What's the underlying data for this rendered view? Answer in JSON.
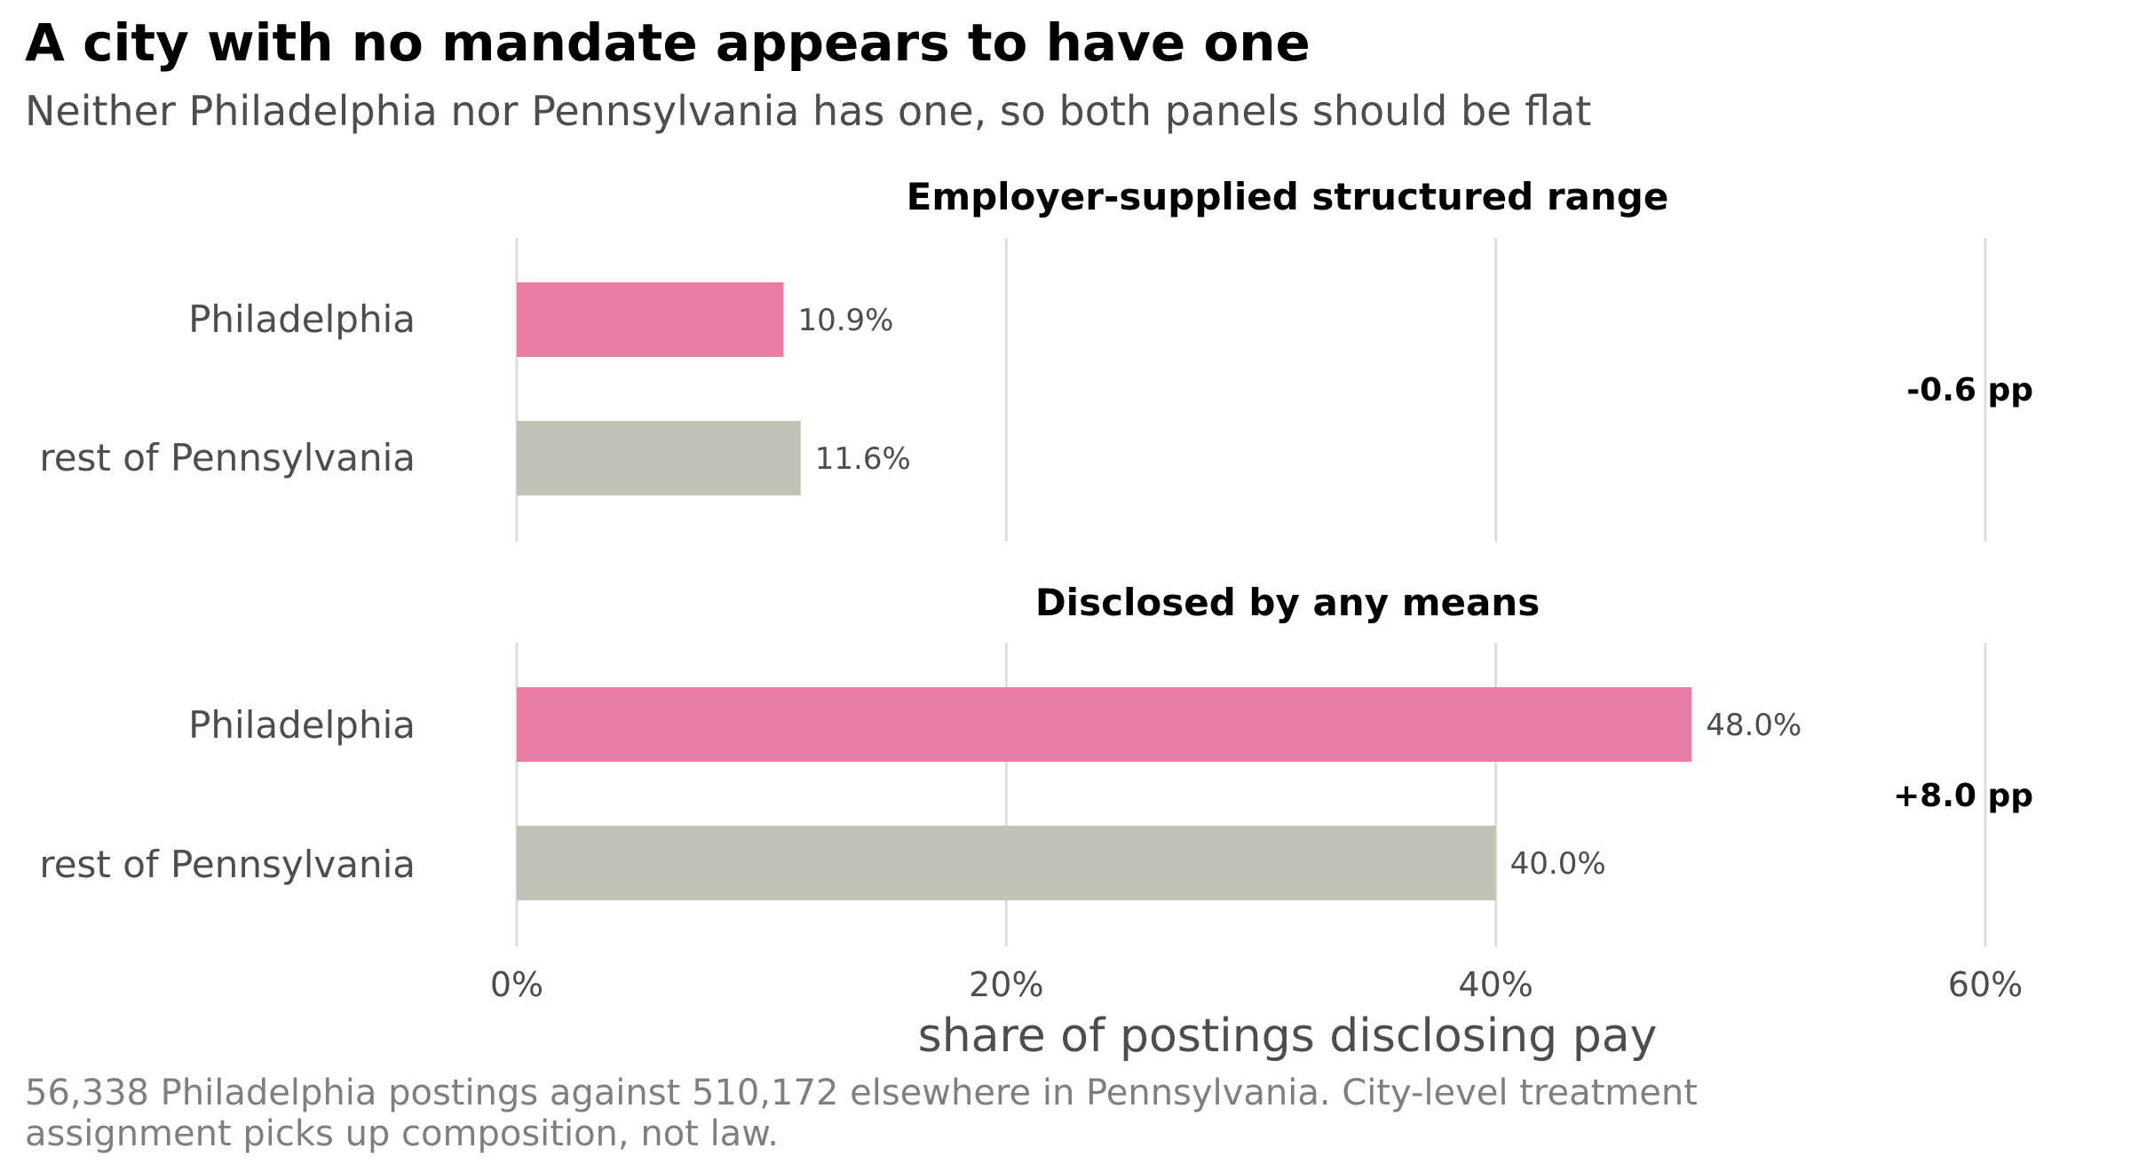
{
  "header": {
    "title": "A city with no mandate appears to have one",
    "subtitle": "Neither Philadelphia nor Pennsylvania has one, so both panels should be flat"
  },
  "caption": "56,338 Philadelphia postings against 510,172 elsewhere in Pennsylvania. City-level treatment assignment picks up composition, not law.",
  "colors": {
    "philadelphia": "#e87ba3",
    "rest_of_pennsylvania": "#c2c2b6",
    "grid": "#deded8"
  },
  "chart_data": {
    "type": "bar",
    "orientation": "horizontal",
    "xlabel": "share of postings disclosing pay",
    "xlim": [
      0,
      60
    ],
    "xticks": [
      0,
      20,
      40,
      60
    ],
    "xtick_labels": [
      "0%",
      "20%",
      "40%",
      "60%"
    ],
    "grid": true,
    "panels": [
      {
        "title": "Employer-supplied structured range",
        "categories": [
          "Philadelphia",
          "rest of Pennsylvania"
        ],
        "values": [
          10.9,
          11.6
        ],
        "value_labels": [
          "10.9%",
          "11.6%"
        ],
        "difference_label": "-0.6 pp"
      },
      {
        "title": "Disclosed by any means",
        "categories": [
          "Philadelphia",
          "rest of Pennsylvania"
        ],
        "values": [
          48.0,
          40.0
        ],
        "value_labels": [
          "48.0%",
          "40.0%"
        ],
        "difference_label": "+8.0 pp"
      }
    ]
  }
}
